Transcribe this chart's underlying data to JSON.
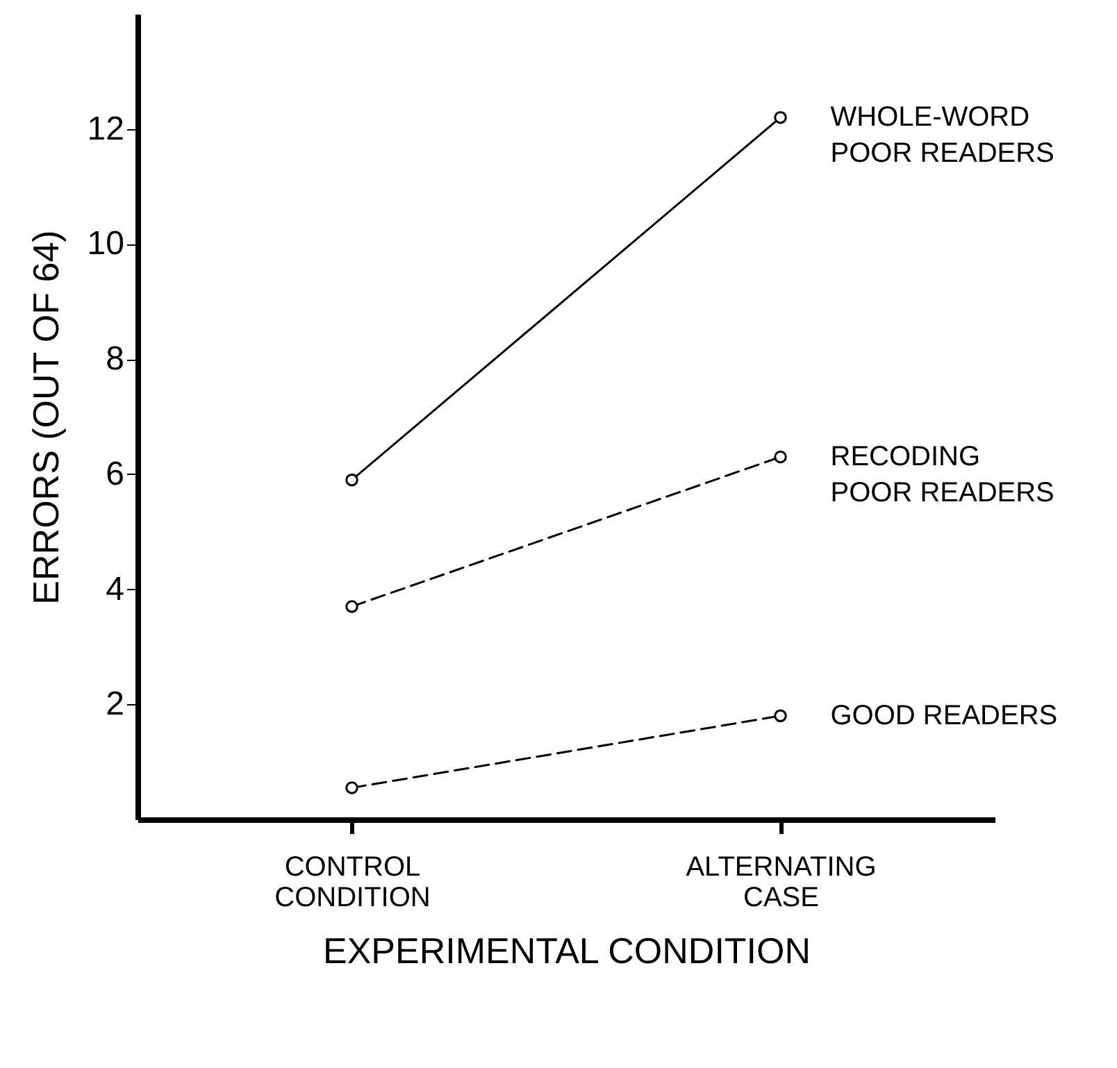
{
  "chart_data": {
    "type": "line",
    "xlabel": "EXPERIMENTAL CONDITION",
    "ylabel": "ERRORS (OUT OF 64)",
    "categories": [
      "CONTROL\nCONDITION",
      "ALTERNATING\nCASE"
    ],
    "series": [
      {
        "name": "WHOLE-WORD\nPOOR READERS",
        "color": "#000000",
        "values": [
          5.9,
          12.2
        ],
        "line_style": "solid"
      },
      {
        "name": "RECODING\nPOOR READERS",
        "color": "#000000",
        "values": [
          3.7,
          6.3
        ],
        "line_style": "dashed"
      },
      {
        "name": "GOOD READERS",
        "color": "#000000",
        "values": [
          0.55,
          1.8
        ],
        "line_style": "dashed"
      }
    ],
    "ylim": [
      0,
      14
    ],
    "yticks": [
      2,
      4,
      6,
      8,
      10,
      12
    ],
    "grid": false,
    "legend": false,
    "marker": "circle"
  }
}
